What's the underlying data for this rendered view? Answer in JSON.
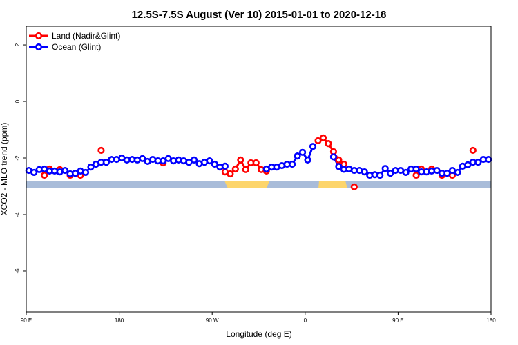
{
  "chart_data": {
    "type": "line",
    "title": "12.5S-7.5S August (Ver 10)   2015-01-01 to 2020-12-18",
    "x_label": "Longitude (deg E)",
    "y_label": "XCO2 - MLO trend (ppm)",
    "x": [
      92.5,
      97.5,
      102.5,
      107.5,
      112.5,
      117.5,
      122.5,
      127.5,
      132.5,
      137.5,
      142.5,
      147.5,
      152.5,
      157.5,
      162.5,
      167.5,
      172.5,
      177.5,
      182.5,
      187.5,
      192.5,
      197.5,
      202.5,
      207.5,
      212.5,
      217.5,
      222.5,
      227.5,
      232.5,
      237.5,
      242.5,
      247.5,
      252.5,
      257.5,
      262.5,
      267.5,
      272.5,
      277.5,
      282.5,
      287.5,
      292.5,
      297.5,
      302.5,
      307.5,
      312.5,
      317.5,
      322.5,
      327.5,
      332.5,
      337.5,
      342.5,
      347.5,
      352.5,
      357.5,
      362.5,
      367.5,
      372.5,
      377.5,
      382.5,
      387.5,
      392.5,
      397.5,
      402.5,
      407.5,
      412.5,
      417.5,
      422.5,
      427.5,
      432.5,
      437.5,
      442.5,
      447.5,
      452.5,
      457.5,
      462.5,
      467.5,
      472.5,
      477.5,
      482.5,
      487.5,
      492.5,
      497.5,
      502.5,
      507.5,
      512.5,
      517.5,
      522.5,
      527.5,
      532.5,
      537.5
    ],
    "series": [
      {
        "name": "Land (Nadir&Glint)",
        "color": "#ff0000",
        "values": [
          null,
          null,
          null,
          -2.61,
          -2.39,
          null,
          -2.41,
          null,
          -2.61,
          null,
          -2.61,
          null,
          null,
          null,
          -1.73,
          null,
          null,
          null,
          null,
          null,
          null,
          null,
          null,
          null,
          null,
          null,
          -2.17,
          null,
          null,
          null,
          null,
          null,
          null,
          null,
          null,
          null,
          null,
          null,
          -2.49,
          -2.56,
          -2.39,
          -2.07,
          -2.41,
          -2.17,
          -2.17,
          -2.41,
          -2.46,
          null,
          null,
          null,
          null,
          null,
          null,
          null,
          null,
          null,
          -1.39,
          -1.29,
          -1.49,
          -1.78,
          -2.07,
          -2.22,
          null,
          -3.02,
          null,
          null,
          null,
          null,
          null,
          null,
          null,
          null,
          null,
          null,
          null,
          -2.61,
          -2.39,
          null,
          -2.39,
          null,
          -2.61,
          null,
          -2.61,
          null,
          null,
          null,
          -1.73,
          null,
          null,
          null
        ]
      },
      {
        "name": "Ocean (Glint)",
        "color": "#0000ff",
        "values": [
          -2.44,
          -2.51,
          -2.41,
          -2.39,
          -2.46,
          -2.46,
          -2.49,
          -2.44,
          -2.56,
          -2.54,
          -2.46,
          -2.51,
          -2.32,
          -2.22,
          -2.15,
          -2.15,
          -2.05,
          -2.05,
          -2.0,
          -2.07,
          -2.05,
          -2.07,
          -2.02,
          -2.12,
          -2.05,
          -2.1,
          -2.1,
          -2.02,
          -2.1,
          -2.07,
          -2.1,
          -2.15,
          -2.07,
          -2.2,
          -2.15,
          -2.1,
          -2.22,
          -2.32,
          -2.29,
          null,
          null,
          null,
          null,
          null,
          null,
          null,
          -2.39,
          -2.32,
          -2.32,
          -2.27,
          -2.22,
          -2.22,
          -1.93,
          -1.8,
          -2.07,
          -1.59,
          null,
          null,
          null,
          -1.96,
          -2.3,
          -2.4,
          -2.39,
          -2.44,
          -2.44,
          -2.49,
          -2.61,
          -2.59,
          -2.61,
          -2.37,
          -2.54,
          -2.44,
          -2.44,
          -2.51,
          -2.39,
          -2.39,
          -2.49,
          -2.49,
          -2.46,
          -2.44,
          -2.54,
          -2.54,
          -2.44,
          -2.51,
          -2.29,
          -2.24,
          -2.15,
          -2.15,
          -2.05,
          -2.05
        ]
      }
    ],
    "xlim": [
      90,
      540
    ],
    "xticks": [
      {
        "value": 90,
        "label": "90 E"
      },
      180,
      {
        "value": 270,
        "label": "90 W"
      },
      {
        "value": 360,
        "label": "0"
      },
      {
        "value": 450,
        "label": "90 E"
      },
      {
        "value": 540,
        "label": "180"
      }
    ],
    "ylim": [
      -7.44,
      2.66
    ],
    "yticks": [
      2,
      0,
      -2,
      -4,
      -6
    ],
    "legend": "top-left"
  }
}
